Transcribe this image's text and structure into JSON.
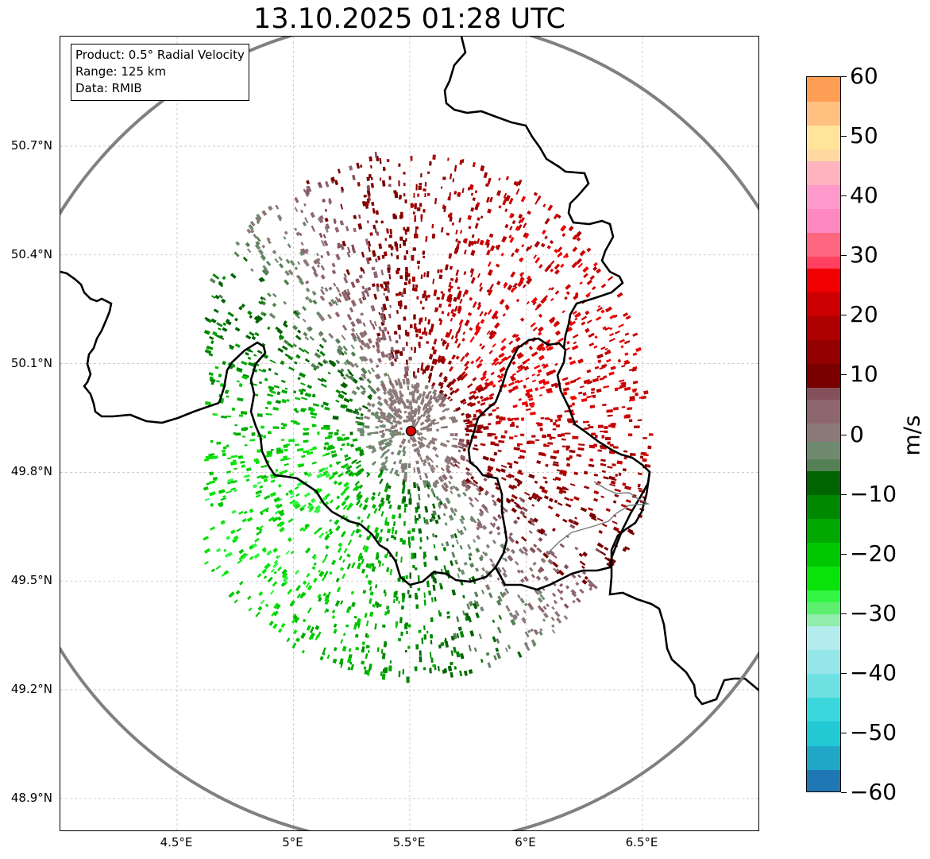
{
  "title": "13.10.2025 01:28 UTC",
  "info_box": {
    "product": "Product: 0.5° Radial Velocity",
    "range": "Range: 125 km",
    "data": "Data: RMIB"
  },
  "lat_ticks": [
    {
      "label": "50.7°N",
      "value": 50.7
    },
    {
      "label": "50.4°N",
      "value": 50.4
    },
    {
      "label": "50.1°N",
      "value": 50.1
    },
    {
      "label": "49.8°N",
      "value": 49.8
    },
    {
      "label": "49.5°N",
      "value": 49.5
    },
    {
      "label": "49.2°N",
      "value": 49.2
    },
    {
      "label": "48.9°N",
      "value": 48.9
    }
  ],
  "lon_ticks": [
    {
      "label": "4.5°E",
      "value": 4.5
    },
    {
      "label": "5°E",
      "value": 5.0
    },
    {
      "label": "5.5°E",
      "value": 5.5
    },
    {
      "label": "6°E",
      "value": 6.0
    },
    {
      "label": "6.5°E",
      "value": 6.5
    }
  ],
  "radar_site": {
    "lon": 5.505,
    "lat": 49.914,
    "color": "#e00000"
  },
  "colorbar": {
    "unit": "m/s",
    "min": -60,
    "max": 60,
    "tick_values": [
      60,
      50,
      40,
      30,
      20,
      10,
      0,
      -10,
      -20,
      -30,
      -40,
      -50,
      -60
    ],
    "tick_labels": [
      "60",
      "50",
      "40",
      "30",
      "20",
      "10",
      "0",
      "−10",
      "−20",
      "−30",
      "−40",
      "−50",
      "−60"
    ],
    "bands": [
      {
        "from": -60,
        "to": -56,
        "color": "#1f77b4"
      },
      {
        "from": -56,
        "to": -52,
        "color": "#20a6c7"
      },
      {
        "from": -52,
        "to": -48,
        "color": "#22c8d4"
      },
      {
        "from": -48,
        "to": -44,
        "color": "#3ad8dc"
      },
      {
        "from": -44,
        "to": -40,
        "color": "#6fe0e2"
      },
      {
        "from": -40,
        "to": -36,
        "color": "#95e6e8"
      },
      {
        "from": -36,
        "to": -32,
        "color": "#b4eced"
      },
      {
        "from": -32,
        "to": -30,
        "color": "#90eeaa"
      },
      {
        "from": -30,
        "to": -28,
        "color": "#5cf06e"
      },
      {
        "from": -28,
        "to": -26,
        "color": "#33f544"
      },
      {
        "from": -26,
        "to": -22,
        "color": "#0ae30a"
      },
      {
        "from": -22,
        "to": -18,
        "color": "#00c800"
      },
      {
        "from": -18,
        "to": -14,
        "color": "#00a800"
      },
      {
        "from": -14,
        "to": -10,
        "color": "#008800"
      },
      {
        "from": -10,
        "to": -6,
        "color": "#006400"
      },
      {
        "from": -6,
        "to": -4,
        "color": "#557f55"
      },
      {
        "from": -4,
        "to": -1,
        "color": "#6f8a6f"
      },
      {
        "from": -1,
        "to": 2,
        "color": "#8c7a7a"
      },
      {
        "from": 2,
        "to": 6,
        "color": "#8e6670"
      },
      {
        "from": 6,
        "to": 8,
        "color": "#86505a"
      },
      {
        "from": 8,
        "to": 12,
        "color": "#7a0000"
      },
      {
        "from": 12,
        "to": 16,
        "color": "#930000"
      },
      {
        "from": 16,
        "to": 20,
        "color": "#ad0000"
      },
      {
        "from": 20,
        "to": 24,
        "color": "#cc0000"
      },
      {
        "from": 24,
        "to": 28,
        "color": "#f00000"
      },
      {
        "from": 28,
        "to": 30,
        "color": "#ff4060"
      },
      {
        "from": 30,
        "to": 34,
        "color": "#ff6680"
      },
      {
        "from": 34,
        "to": 38,
        "color": "#ff88c0"
      },
      {
        "from": 38,
        "to": 42,
        "color": "#ff99cc"
      },
      {
        "from": 42,
        "to": 46,
        "color": "#ffb3bf"
      },
      {
        "from": 46,
        "to": 48,
        "color": "#ffd9a0"
      },
      {
        "from": 48,
        "to": 52,
        "color": "#ffe49a"
      },
      {
        "from": 52,
        "to": 56,
        "color": "#ffc080"
      },
      {
        "from": 56,
        "to": 60,
        "color": "#ff9e55"
      }
    ]
  },
  "colors": {
    "range_ring": "#808080",
    "border": "#000000",
    "grid": "#bbbbbb"
  }
}
